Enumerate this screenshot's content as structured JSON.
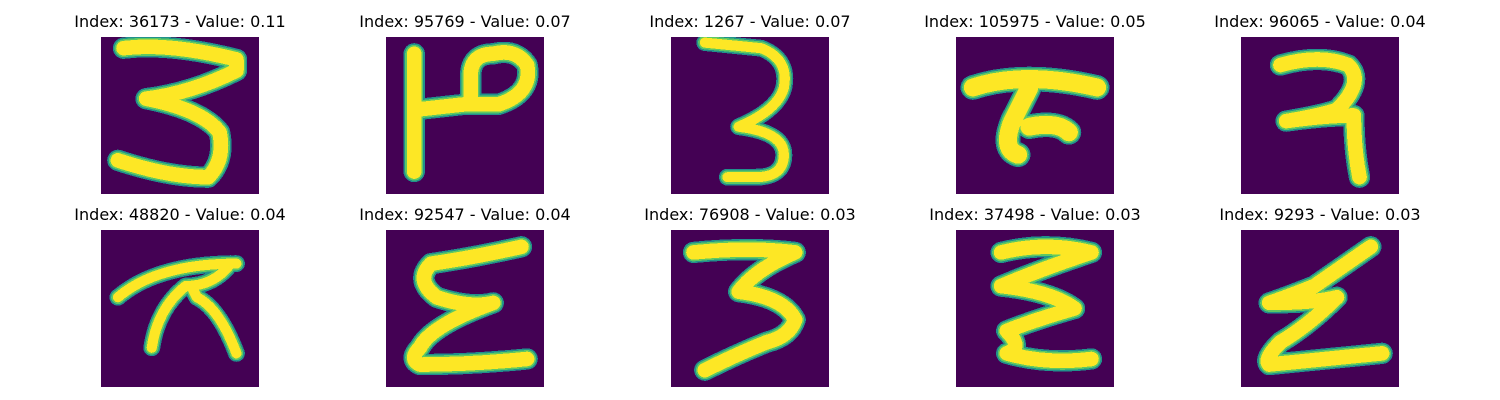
{
  "colors": {
    "background": "#440154",
    "stroke_edge": "#21918c",
    "stroke_mid": "#5ec962",
    "stroke_core": "#fde725"
  },
  "panels": [
    {
      "index": 36173,
      "value": 0.11,
      "title": "Index: 36173 - Value: 0.11"
    },
    {
      "index": 95769,
      "value": 0.07,
      "title": "Index: 95769 - Value: 0.07"
    },
    {
      "index": 1267,
      "value": 0.07,
      "title": "Index: 1267 - Value: 0.07"
    },
    {
      "index": 105975,
      "value": 0.05,
      "title": "Index: 105975 - Value: 0.05"
    },
    {
      "index": 96065,
      "value": 0.04,
      "title": "Index: 96065 - Value: 0.04"
    },
    {
      "index": 48820,
      "value": 0.04,
      "title": "Index: 48820 - Value: 0.04"
    },
    {
      "index": 92547,
      "value": 0.04,
      "title": "Index: 92547 - Value: 0.04"
    },
    {
      "index": 76908,
      "value": 0.03,
      "title": "Index: 76908 - Value: 0.03"
    },
    {
      "index": 37498,
      "value": 0.03,
      "title": "Index: 37498 - Value: 0.03"
    },
    {
      "index": 9293,
      "value": 0.03,
      "title": "Index: 9293 - Value: 0.03"
    }
  ]
}
